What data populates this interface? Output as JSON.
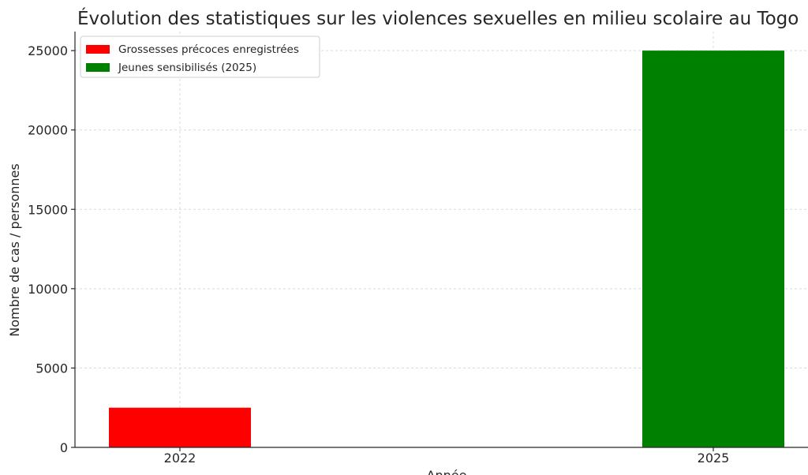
{
  "chart_data": {
    "type": "bar",
    "title": "Évolution des statistiques sur les violences sexuelles en milieu scolaire au Togo",
    "xlabel": "Année",
    "ylabel": "Nombre de cas / personnes",
    "x_ticks": [
      "2022",
      "2025"
    ],
    "y_ticks": [
      0,
      5000,
      10000,
      15000,
      20000,
      25000
    ],
    "ylim": [
      0,
      26200
    ],
    "grid": true,
    "legend_position": "top-left",
    "series": [
      {
        "name": "Grossesses précoces enregistrées",
        "category": "2022",
        "value": 2500,
        "color": "#ff0000"
      },
      {
        "name": "Jeunes sensibilisés (2025)",
        "category": "2025",
        "value": 25000,
        "color": "#008000"
      }
    ]
  }
}
